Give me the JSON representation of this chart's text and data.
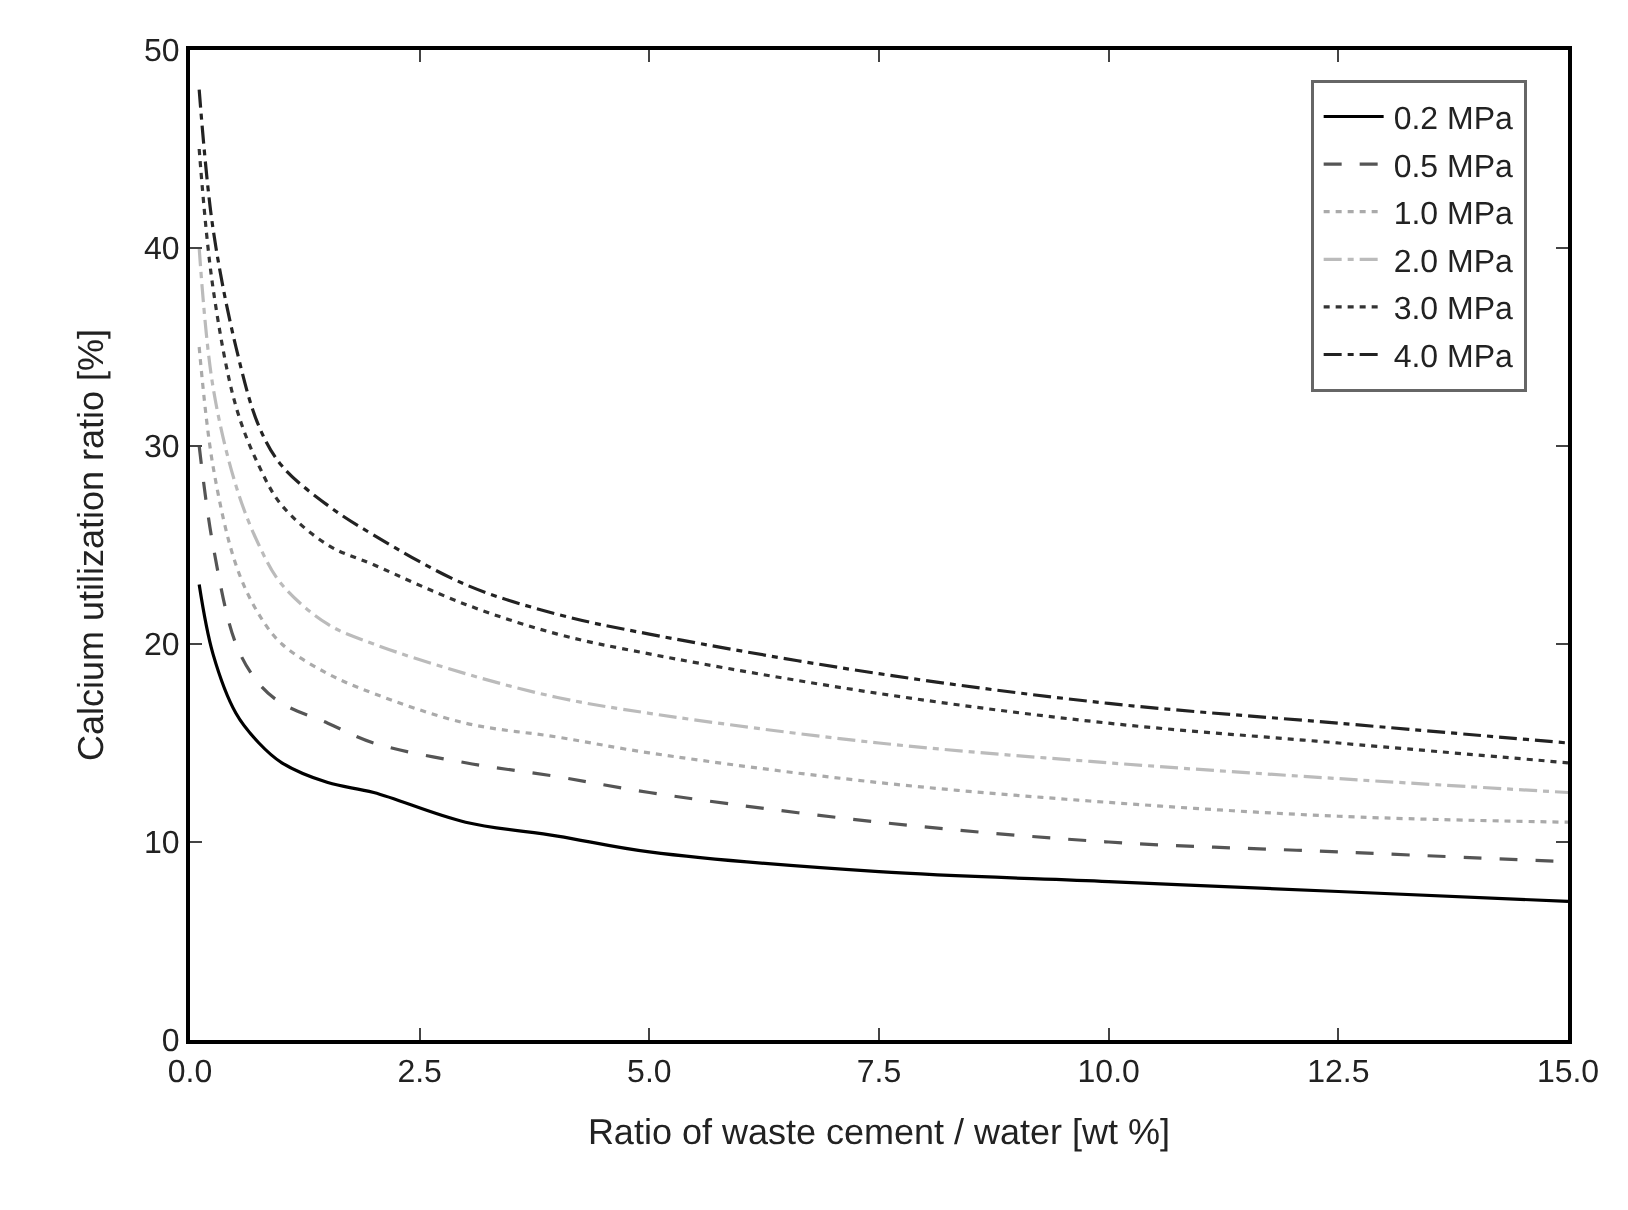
{
  "chart_data": {
    "type": "line",
    "xlabel": "Ratio of waste cement / water [wt %]",
    "ylabel": "Calcium utilization ratio [%]",
    "x": [
      0.1,
      0.25,
      0.5,
      0.75,
      1,
      1.5,
      2,
      3,
      4,
      5,
      7.5,
      10,
      12.5,
      15
    ],
    "xlim": [
      0,
      15
    ],
    "xticks": [
      {
        "value": 0,
        "label": "0.0"
      },
      {
        "value": 2.5,
        "label": "2.5"
      },
      {
        "value": 5,
        "label": "5.0"
      },
      {
        "value": 7.5,
        "label": "7.5"
      },
      {
        "value": 10,
        "label": "10.0"
      },
      {
        "value": 12.5,
        "label": "12.5"
      },
      {
        "value": 15,
        "label": "15.0"
      }
    ],
    "ylim": [
      0,
      50
    ],
    "yticks": [
      0,
      10,
      20,
      30,
      40,
      50
    ],
    "legend": "top right",
    "marker": "none",
    "series": [
      {
        "name": "0.2 MPa",
        "color": "#000000",
        "line_style": "solid",
        "values": [
          23,
          19.5,
          16.5,
          15,
          14,
          13,
          12.5,
          11,
          10.3,
          9.5,
          8.5,
          8,
          7.5,
          7
        ]
      },
      {
        "name": "0.5 MPa",
        "color": "#555555",
        "line_style": "dashed",
        "values": [
          30,
          25,
          20,
          18,
          17,
          16,
          15,
          14,
          13.3,
          12.5,
          11,
          10,
          9.5,
          9
        ]
      },
      {
        "name": "1.0 MPa",
        "color": "#aaaaaa",
        "line_style": "dotted",
        "values": [
          35,
          29,
          24,
          21.5,
          20,
          18.5,
          17.5,
          16,
          15.3,
          14.5,
          13,
          12,
          11.3,
          11
        ]
      },
      {
        "name": "2.0 MPa",
        "color": "#bbbbbb",
        "line_style": "dashdot",
        "values": [
          40,
          33,
          28,
          25,
          23,
          21,
          20,
          18.5,
          17.3,
          16.5,
          15,
          14,
          13.2,
          12.5
        ]
      },
      {
        "name": "3.0 MPa",
        "color": "#333333",
        "line_style": "dotted",
        "values": [
          45,
          38,
          32,
          29,
          27,
          25,
          24,
          22,
          20.5,
          19.5,
          17.5,
          16,
          15,
          14
        ]
      },
      {
        "name": "4.0 MPa",
        "color": "#222222",
        "line_style": "dashdot",
        "values": [
          48,
          41,
          35,
          31,
          29,
          27,
          25.5,
          23,
          21.5,
          20.5,
          18.5,
          17,
          16,
          15
        ]
      }
    ]
  }
}
